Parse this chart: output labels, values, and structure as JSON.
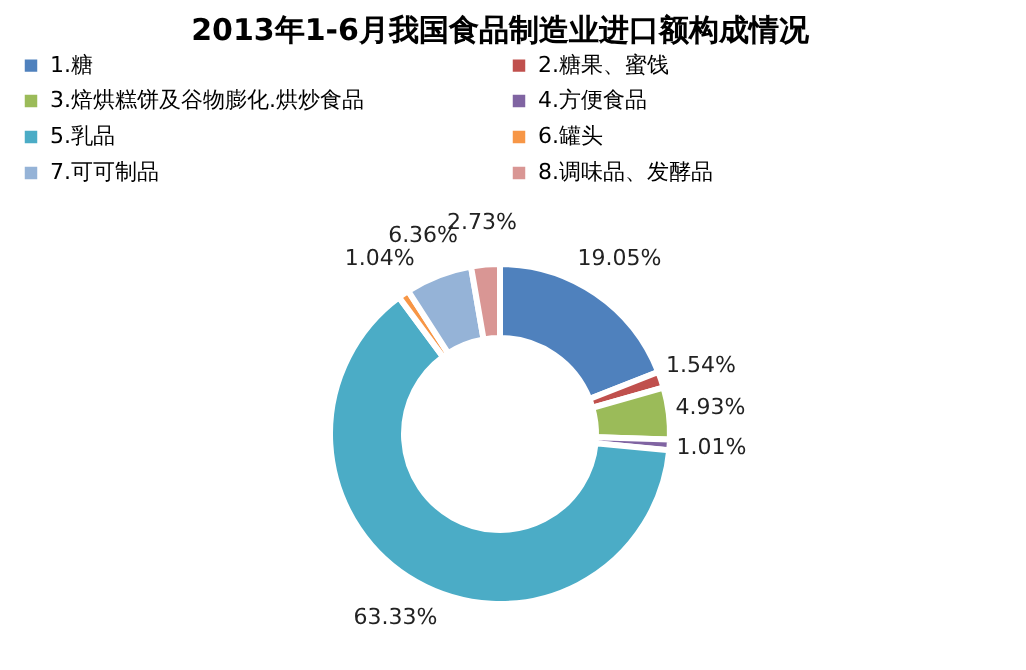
{
  "chart_data": {
    "type": "donut",
    "title": "2013年1-6月我国食品制造业进口额构成情况",
    "categories": [
      "1.糖",
      "2.糖果、蜜饯",
      "3.焙烘糕饼及谷物膨化.烘炒食品",
      "4.方便食品",
      "5.乳品",
      "6.罐头",
      "7.可可制品",
      "8.调味品、发酵品"
    ],
    "values": [
      19.05,
      1.54,
      4.93,
      1.01,
      63.33,
      1.04,
      6.36,
      2.73
    ],
    "value_labels": [
      "19.05%",
      "1.54%",
      "4.93%",
      "1.01%",
      "63.33%",
      "1.04%",
      "6.36%",
      "2.73%"
    ],
    "colors": [
      "#4f81bd",
      "#c0504d",
      "#9bbb59",
      "#8064a2",
      "#4bacc6",
      "#f79646",
      "#95b3d7",
      "#d99694"
    ],
    "legend": "top"
  }
}
